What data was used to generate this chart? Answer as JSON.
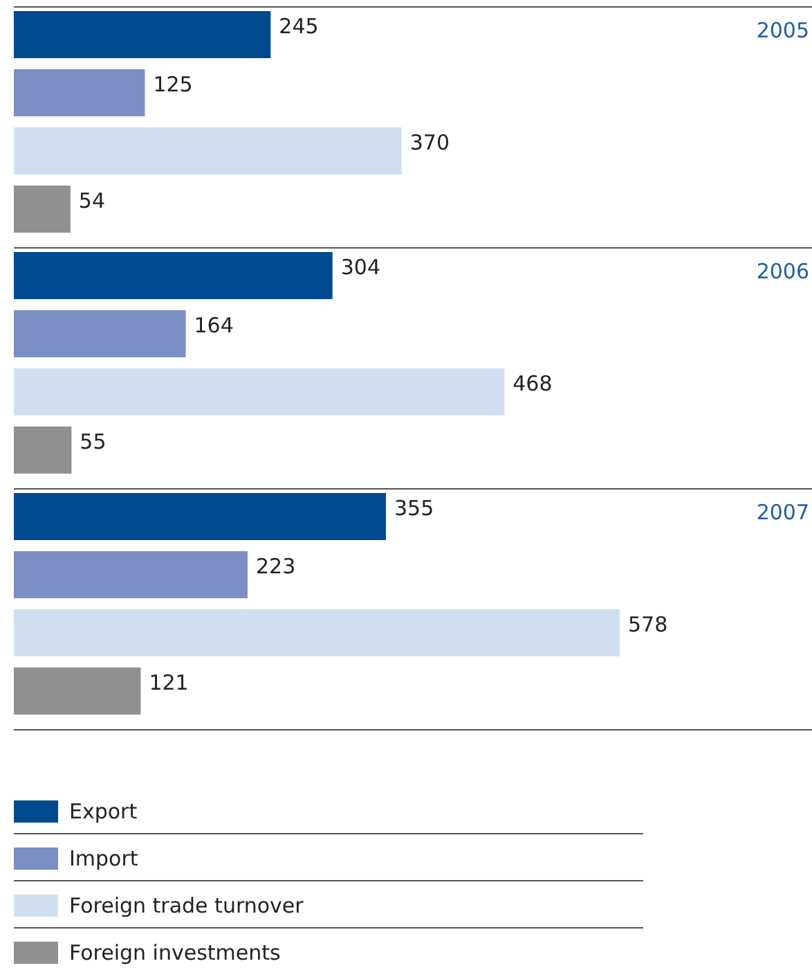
{
  "chart_data": {
    "type": "bar",
    "orientation": "horizontal",
    "categories": [
      "2005",
      "2006",
      "2007"
    ],
    "series": [
      {
        "name": "Export",
        "color": "#004a8f",
        "values": [
          245,
          304,
          355
        ]
      },
      {
        "name": "Import",
        "color": "#7b8fc4",
        "values": [
          125,
          164,
          223
        ]
      },
      {
        "name": "Foreign trade turnover",
        "color": "#cfdff0",
        "values": [
          370,
          468,
          578
        ]
      },
      {
        "name": "Foreign investments",
        "color": "#909090",
        "values": [
          54,
          55,
          121
        ]
      }
    ],
    "data_labels": true,
    "legend": "bottom"
  }
}
